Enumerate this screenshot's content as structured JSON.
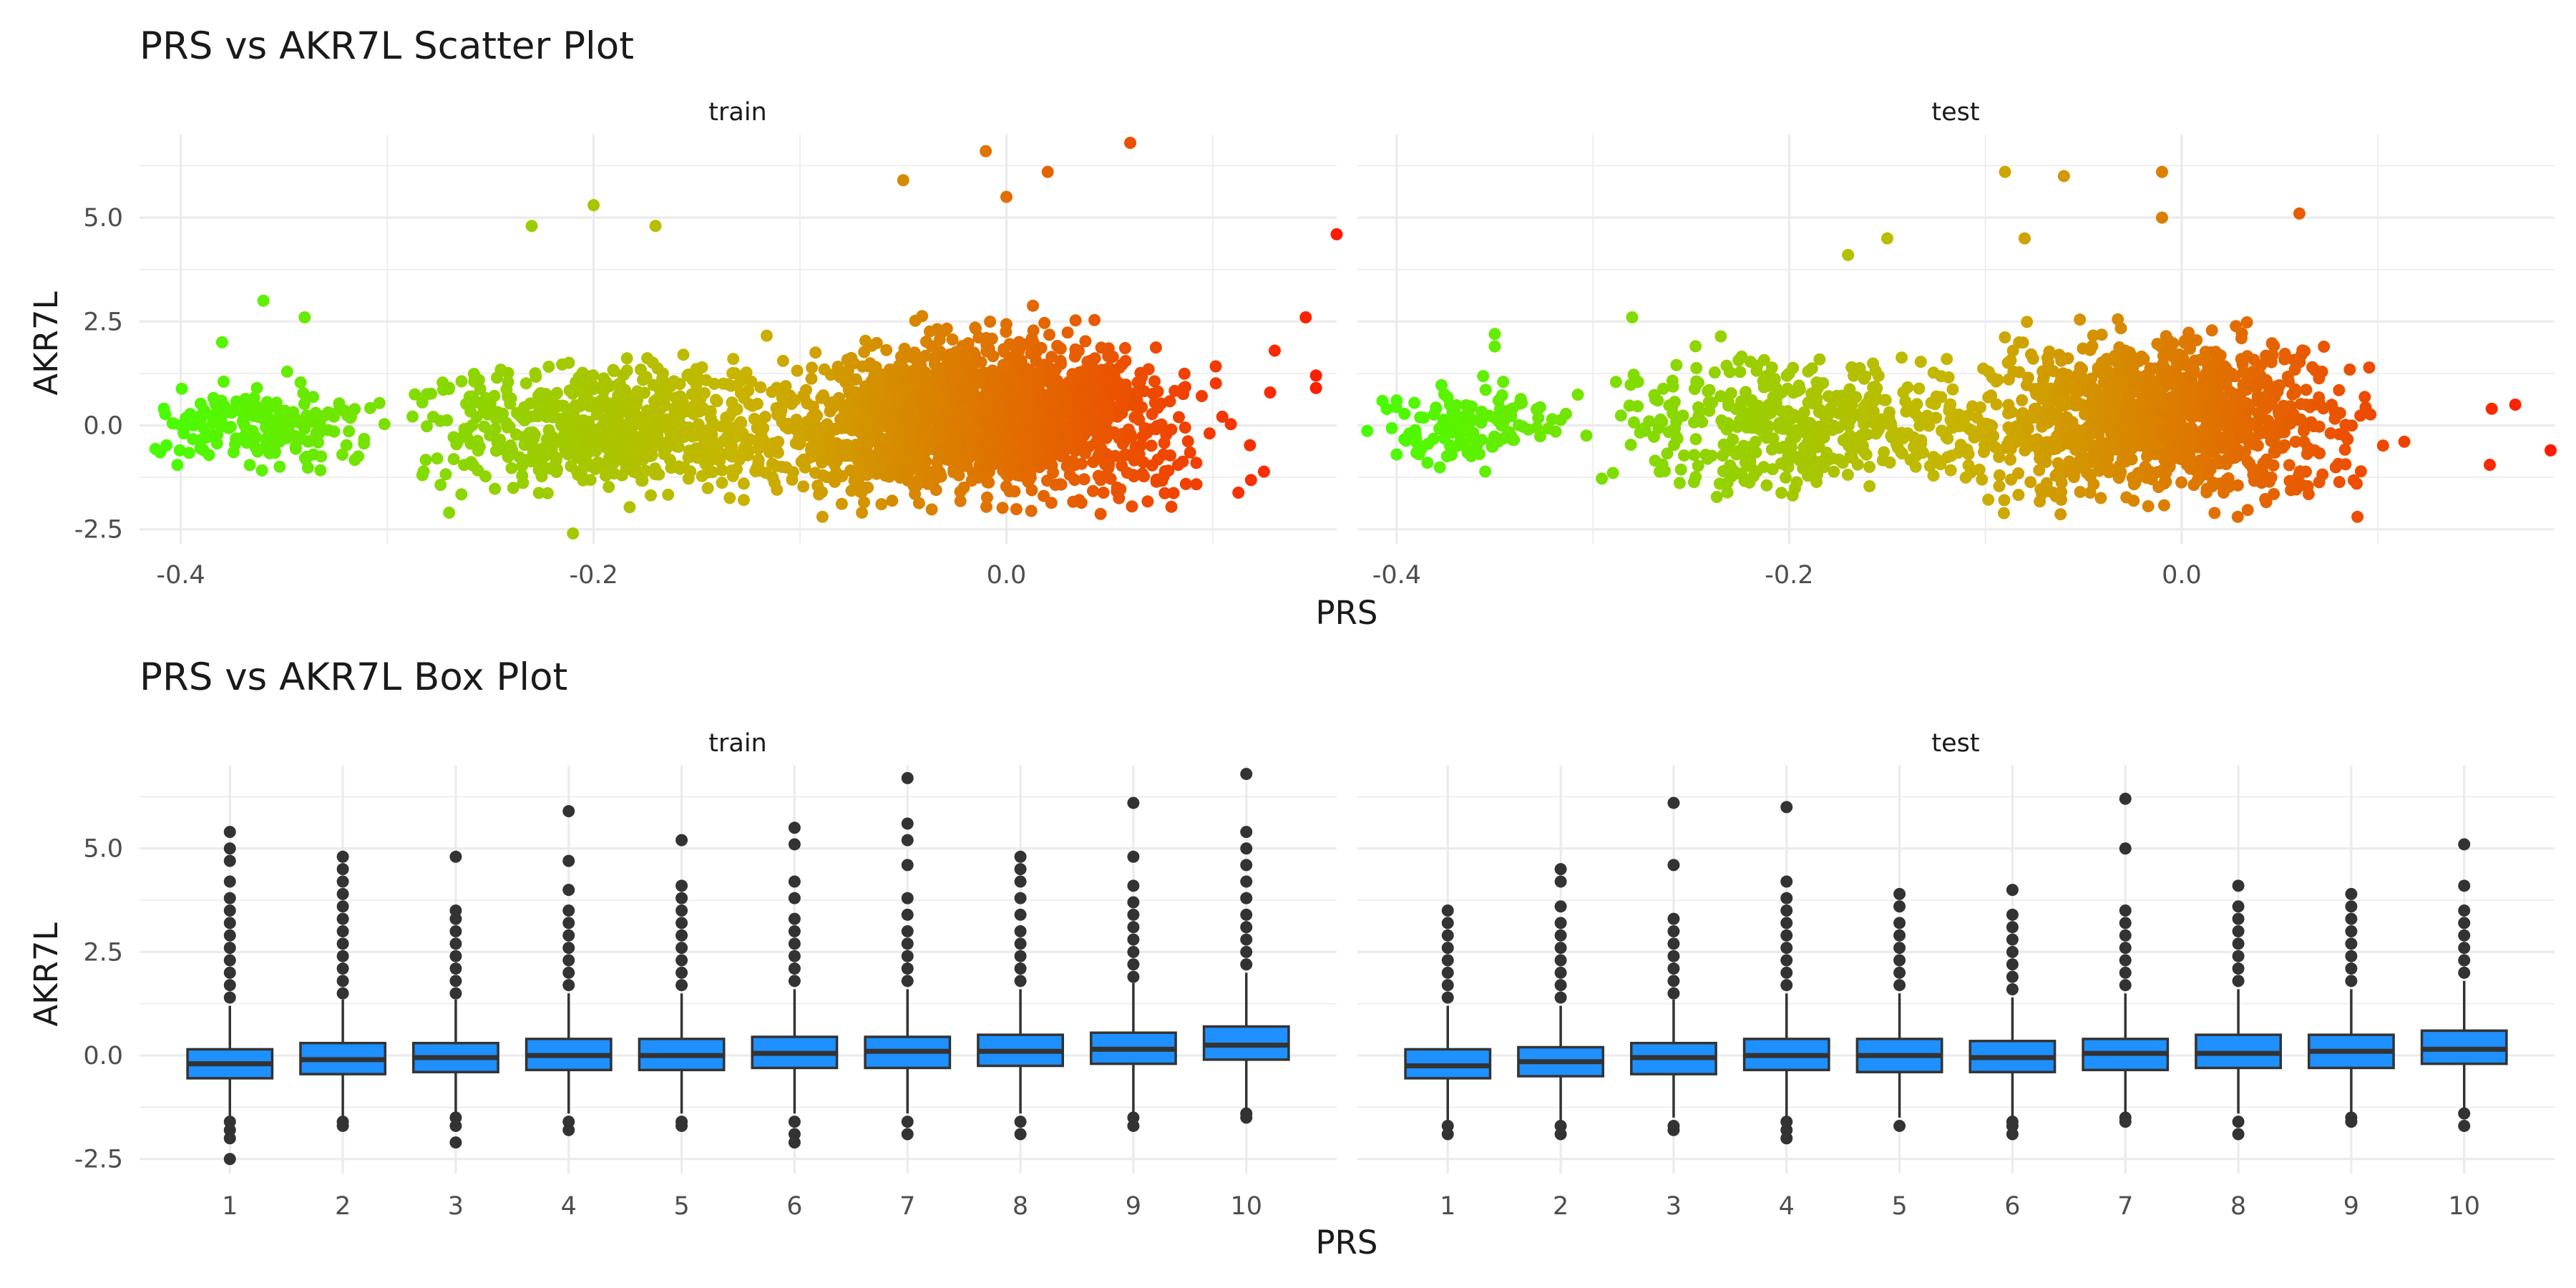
{
  "figure": {
    "scatter_title": "PRS vs AKR7L Scatter Plot",
    "box_title": "PRS vs AKR7L Box Plot"
  },
  "colors": {
    "gradient_low": "#44ff00",
    "gradient_mid": "#c8b400",
    "gradient_high": "#ff1a00",
    "box_fill": "#1e90ff",
    "box_outline": "#333333",
    "outlier": "#333333",
    "grid": "#ebebeb"
  },
  "chart_data": [
    {
      "type": "scatter",
      "title": "PRS vs AKR7L Scatter Plot",
      "xlabel": "PRS",
      "ylabel": "AKR7L",
      "grid": true,
      "facets": [
        {
          "label": "train",
          "xlim": [
            -0.42,
            0.16
          ],
          "ylim": [
            -2.85,
            7.0
          ],
          "x_ticks": [
            "-0.4",
            "-0.2",
            "0.0"
          ],
          "y_ticks": [
            "-2.5",
            "0.0",
            "2.5",
            "5.0"
          ],
          "highlighted_points": [
            {
              "x": -0.36,
              "y": 3.0
            },
            {
              "x": -0.38,
              "y": 2.0
            },
            {
              "x": -0.34,
              "y": 2.6
            },
            {
              "x": -0.2,
              "y": 5.3
            },
            {
              "x": -0.17,
              "y": 4.8
            },
            {
              "x": -0.23,
              "y": 4.8
            },
            {
              "x": -0.21,
              "y": -2.6
            },
            {
              "x": -0.27,
              "y": -2.1
            },
            {
              "x": -0.07,
              "y": -2.1
            },
            {
              "x": -0.01,
              "y": 6.6
            },
            {
              "x": 0.06,
              "y": 6.8
            },
            {
              "x": 0.02,
              "y": 6.1
            },
            {
              "x": -0.05,
              "y": 5.9
            },
            {
              "x": 0.0,
              "y": 5.5
            },
            {
              "x": 0.16,
              "y": 4.6
            },
            {
              "x": 0.145,
              "y": 2.6
            },
            {
              "x": 0.15,
              "y": 1.2
            },
            {
              "x": 0.15,
              "y": 0.9
            },
            {
              "x": 0.13,
              "y": 1.8
            },
            {
              "x": -0.41,
              "y": -0.65
            },
            {
              "x": -0.4,
              "y": 0.0
            }
          ]
        },
        {
          "label": "test",
          "xlim": [
            -0.42,
            0.19
          ],
          "ylim": [
            -2.85,
            7.0
          ],
          "x_ticks": [
            "-0.4",
            "-0.2",
            "0.0"
          ],
          "y_ticks": [
            "-2.5",
            "0.0",
            "2.5",
            "5.0"
          ],
          "highlighted_points": [
            {
              "x": -0.35,
              "y": 2.2
            },
            {
              "x": -0.35,
              "y": 1.9
            },
            {
              "x": -0.4,
              "y": 0.6
            },
            {
              "x": -0.4,
              "y": -0.7
            },
            {
              "x": -0.28,
              "y": 2.6
            },
            {
              "x": -0.09,
              "y": 6.1
            },
            {
              "x": -0.06,
              "y": 6.0
            },
            {
              "x": -0.01,
              "y": 6.1
            },
            {
              "x": -0.01,
              "y": 5.0
            },
            {
              "x": -0.08,
              "y": 4.5
            },
            {
              "x": 0.06,
              "y": 5.1
            },
            {
              "x": 0.17,
              "y": 0.5
            },
            {
              "x": 0.158,
              "y": 0.4
            },
            {
              "x": 0.157,
              "y": -0.95
            },
            {
              "x": 0.188,
              "y": -0.6
            },
            {
              "x": -0.15,
              "y": 4.5
            },
            {
              "x": -0.17,
              "y": 4.1
            }
          ]
        }
      ]
    },
    {
      "type": "box",
      "title": "PRS vs AKR7L Box Plot",
      "xlabel": "PRS",
      "ylabel": "AKR7L",
      "grid": true,
      "categories": [
        "1",
        "2",
        "3",
        "4",
        "5",
        "6",
        "7",
        "8",
        "9",
        "10"
      ],
      "y_ticks": [
        "-2.5",
        "0.0",
        "2.5",
        "5.0"
      ],
      "facets": [
        {
          "label": "train",
          "ylim": [
            -2.85,
            7.0
          ],
          "boxes": [
            {
              "q1": -0.55,
              "median": -0.2,
              "q3": 0.15,
              "whisker_low": -1.5,
              "whisker_high": 1.2,
              "outliers_high": [
                1.4,
                1.7,
                2.0,
                2.3,
                2.6,
                2.9,
                3.2,
                3.5,
                3.8,
                4.2,
                4.7,
                5.0,
                5.4
              ],
              "outliers_low": [
                -1.6,
                -1.8,
                -2.0,
                -2.5
              ]
            },
            {
              "q1": -0.45,
              "median": -0.1,
              "q3": 0.3,
              "whisker_low": -1.5,
              "whisker_high": 1.35,
              "outliers_high": [
                1.5,
                1.8,
                2.1,
                2.4,
                2.7,
                3.0,
                3.3,
                3.6,
                3.9,
                4.2,
                4.5,
                4.8
              ],
              "outliers_low": [
                -1.6,
                -1.7
              ]
            },
            {
              "q1": -0.4,
              "median": -0.05,
              "q3": 0.3,
              "whisker_low": -1.4,
              "whisker_high": 1.35,
              "outliers_high": [
                1.5,
                1.8,
                2.1,
                2.4,
                2.7,
                3.0,
                3.3,
                3.5,
                4.8
              ],
              "outliers_low": [
                -1.5,
                -1.7,
                -2.1
              ]
            },
            {
              "q1": -0.35,
              "median": 0.0,
              "q3": 0.4,
              "whisker_low": -1.4,
              "whisker_high": 1.5,
              "outliers_high": [
                1.7,
                2.0,
                2.3,
                2.6,
                2.9,
                3.2,
                3.5,
                4.0,
                4.7,
                5.9
              ],
              "outliers_low": [
                -1.6,
                -1.8
              ]
            },
            {
              "q1": -0.35,
              "median": 0.0,
              "q3": 0.4,
              "whisker_low": -1.4,
              "whisker_high": 1.5,
              "outliers_high": [
                1.7,
                2.0,
                2.3,
                2.6,
                2.9,
                3.2,
                3.5,
                3.8,
                4.1,
                5.2
              ],
              "outliers_low": [
                -1.6,
                -1.7
              ]
            },
            {
              "q1": -0.3,
              "median": 0.05,
              "q3": 0.45,
              "whisker_low": -1.4,
              "whisker_high": 1.6,
              "outliers_high": [
                1.8,
                2.1,
                2.4,
                2.7,
                3.0,
                3.3,
                3.8,
                4.2,
                5.1,
                5.5
              ],
              "outliers_low": [
                -1.6,
                -1.9,
                -2.1
              ]
            },
            {
              "q1": -0.3,
              "median": 0.1,
              "q3": 0.45,
              "whisker_low": -1.4,
              "whisker_high": 1.6,
              "outliers_high": [
                1.8,
                2.1,
                2.4,
                2.7,
                3.0,
                3.4,
                3.8,
                4.6,
                5.2,
                5.6,
                6.7
              ],
              "outliers_low": [
                -1.6,
                -1.9
              ]
            },
            {
              "q1": -0.25,
              "median": 0.1,
              "q3": 0.5,
              "whisker_low": -1.4,
              "whisker_high": 1.6,
              "outliers_high": [
                1.8,
                2.1,
                2.4,
                2.7,
                3.0,
                3.4,
                3.8,
                4.2,
                4.5,
                4.8
              ],
              "outliers_low": [
                -1.6,
                -1.9
              ]
            },
            {
              "q1": -0.2,
              "median": 0.15,
              "q3": 0.55,
              "whisker_low": -1.4,
              "whisker_high": 1.75,
              "outliers_high": [
                1.9,
                2.2,
                2.5,
                2.8,
                3.1,
                3.4,
                3.7,
                4.1,
                4.8,
                6.1
              ],
              "outliers_low": [
                -1.5,
                -1.7
              ]
            },
            {
              "q1": -0.1,
              "median": 0.25,
              "q3": 0.7,
              "whisker_low": -1.3,
              "whisker_high": 2.0,
              "outliers_high": [
                2.2,
                2.5,
                2.8,
                3.1,
                3.4,
                3.8,
                4.2,
                4.6,
                5.0,
                5.4,
                6.8
              ],
              "outliers_low": [
                -1.4,
                -1.5
              ]
            }
          ]
        },
        {
          "label": "test",
          "ylim": [
            -2.85,
            7.0
          ],
          "boxes": [
            {
              "q1": -0.55,
              "median": -0.25,
              "q3": 0.15,
              "whisker_low": -1.6,
              "whisker_high": 1.2,
              "outliers_high": [
                1.4,
                1.7,
                2.0,
                2.3,
                2.6,
                2.9,
                3.2,
                3.5
              ],
              "outliers_low": [
                -1.7,
                -1.9
              ]
            },
            {
              "q1": -0.5,
              "median": -0.15,
              "q3": 0.2,
              "whisker_low": -1.6,
              "whisker_high": 1.2,
              "outliers_high": [
                1.4,
                1.7,
                2.0,
                2.3,
                2.6,
                2.9,
                3.2,
                3.6,
                4.2,
                4.5
              ],
              "outliers_low": [
                -1.7,
                -1.9
              ]
            },
            {
              "q1": -0.45,
              "median": -0.05,
              "q3": 0.3,
              "whisker_low": -1.5,
              "whisker_high": 1.35,
              "outliers_high": [
                1.5,
                1.8,
                2.1,
                2.4,
                2.7,
                3.0,
                3.3,
                4.6,
                6.1
              ],
              "outliers_low": [
                -1.7,
                -1.8
              ]
            },
            {
              "q1": -0.35,
              "median": 0.0,
              "q3": 0.4,
              "whisker_low": -1.5,
              "whisker_high": 1.5,
              "outliers_high": [
                1.7,
                2.0,
                2.3,
                2.6,
                2.9,
                3.2,
                3.5,
                3.8,
                4.2,
                6.0
              ],
              "outliers_low": [
                -1.6,
                -1.8,
                -2.0
              ]
            },
            {
              "q1": -0.4,
              "median": 0.0,
              "q3": 0.4,
              "whisker_low": -1.5,
              "whisker_high": 1.5,
              "outliers_high": [
                1.7,
                2.0,
                2.3,
                2.6,
                2.9,
                3.2,
                3.6,
                3.9
              ],
              "outliers_low": [
                -1.7
              ]
            },
            {
              "q1": -0.4,
              "median": -0.05,
              "q3": 0.35,
              "whisker_low": -1.5,
              "whisker_high": 1.4,
              "outliers_high": [
                1.6,
                1.9,
                2.2,
                2.5,
                2.8,
                3.1,
                3.4,
                4.0
              ],
              "outliers_low": [
                -1.6,
                -1.7,
                -1.9
              ]
            },
            {
              "q1": -0.35,
              "median": 0.05,
              "q3": 0.4,
              "whisker_low": -1.4,
              "whisker_high": 1.5,
              "outliers_high": [
                1.7,
                2.0,
                2.3,
                2.6,
                2.9,
                3.2,
                3.5,
                5.0,
                6.2
              ],
              "outliers_low": [
                -1.5,
                -1.6
              ]
            },
            {
              "q1": -0.3,
              "median": 0.05,
              "q3": 0.5,
              "whisker_low": -1.4,
              "whisker_high": 1.6,
              "outliers_high": [
                1.8,
                2.1,
                2.4,
                2.7,
                3.0,
                3.3,
                3.6,
                4.1
              ],
              "outliers_low": [
                -1.6,
                -1.9
              ]
            },
            {
              "q1": -0.3,
              "median": 0.1,
              "q3": 0.5,
              "whisker_low": -1.4,
              "whisker_high": 1.6,
              "outliers_high": [
                1.8,
                2.1,
                2.4,
                2.7,
                3.0,
                3.3,
                3.6,
                3.9
              ],
              "outliers_low": [
                -1.5,
                -1.6
              ]
            },
            {
              "q1": -0.2,
              "median": 0.15,
              "q3": 0.6,
              "whisker_low": -1.3,
              "whisker_high": 1.8,
              "outliers_high": [
                2.0,
                2.3,
                2.6,
                2.9,
                3.2,
                3.5,
                4.1,
                5.1
              ],
              "outliers_low": [
                -1.4,
                -1.7
              ]
            }
          ]
        }
      ]
    }
  ]
}
